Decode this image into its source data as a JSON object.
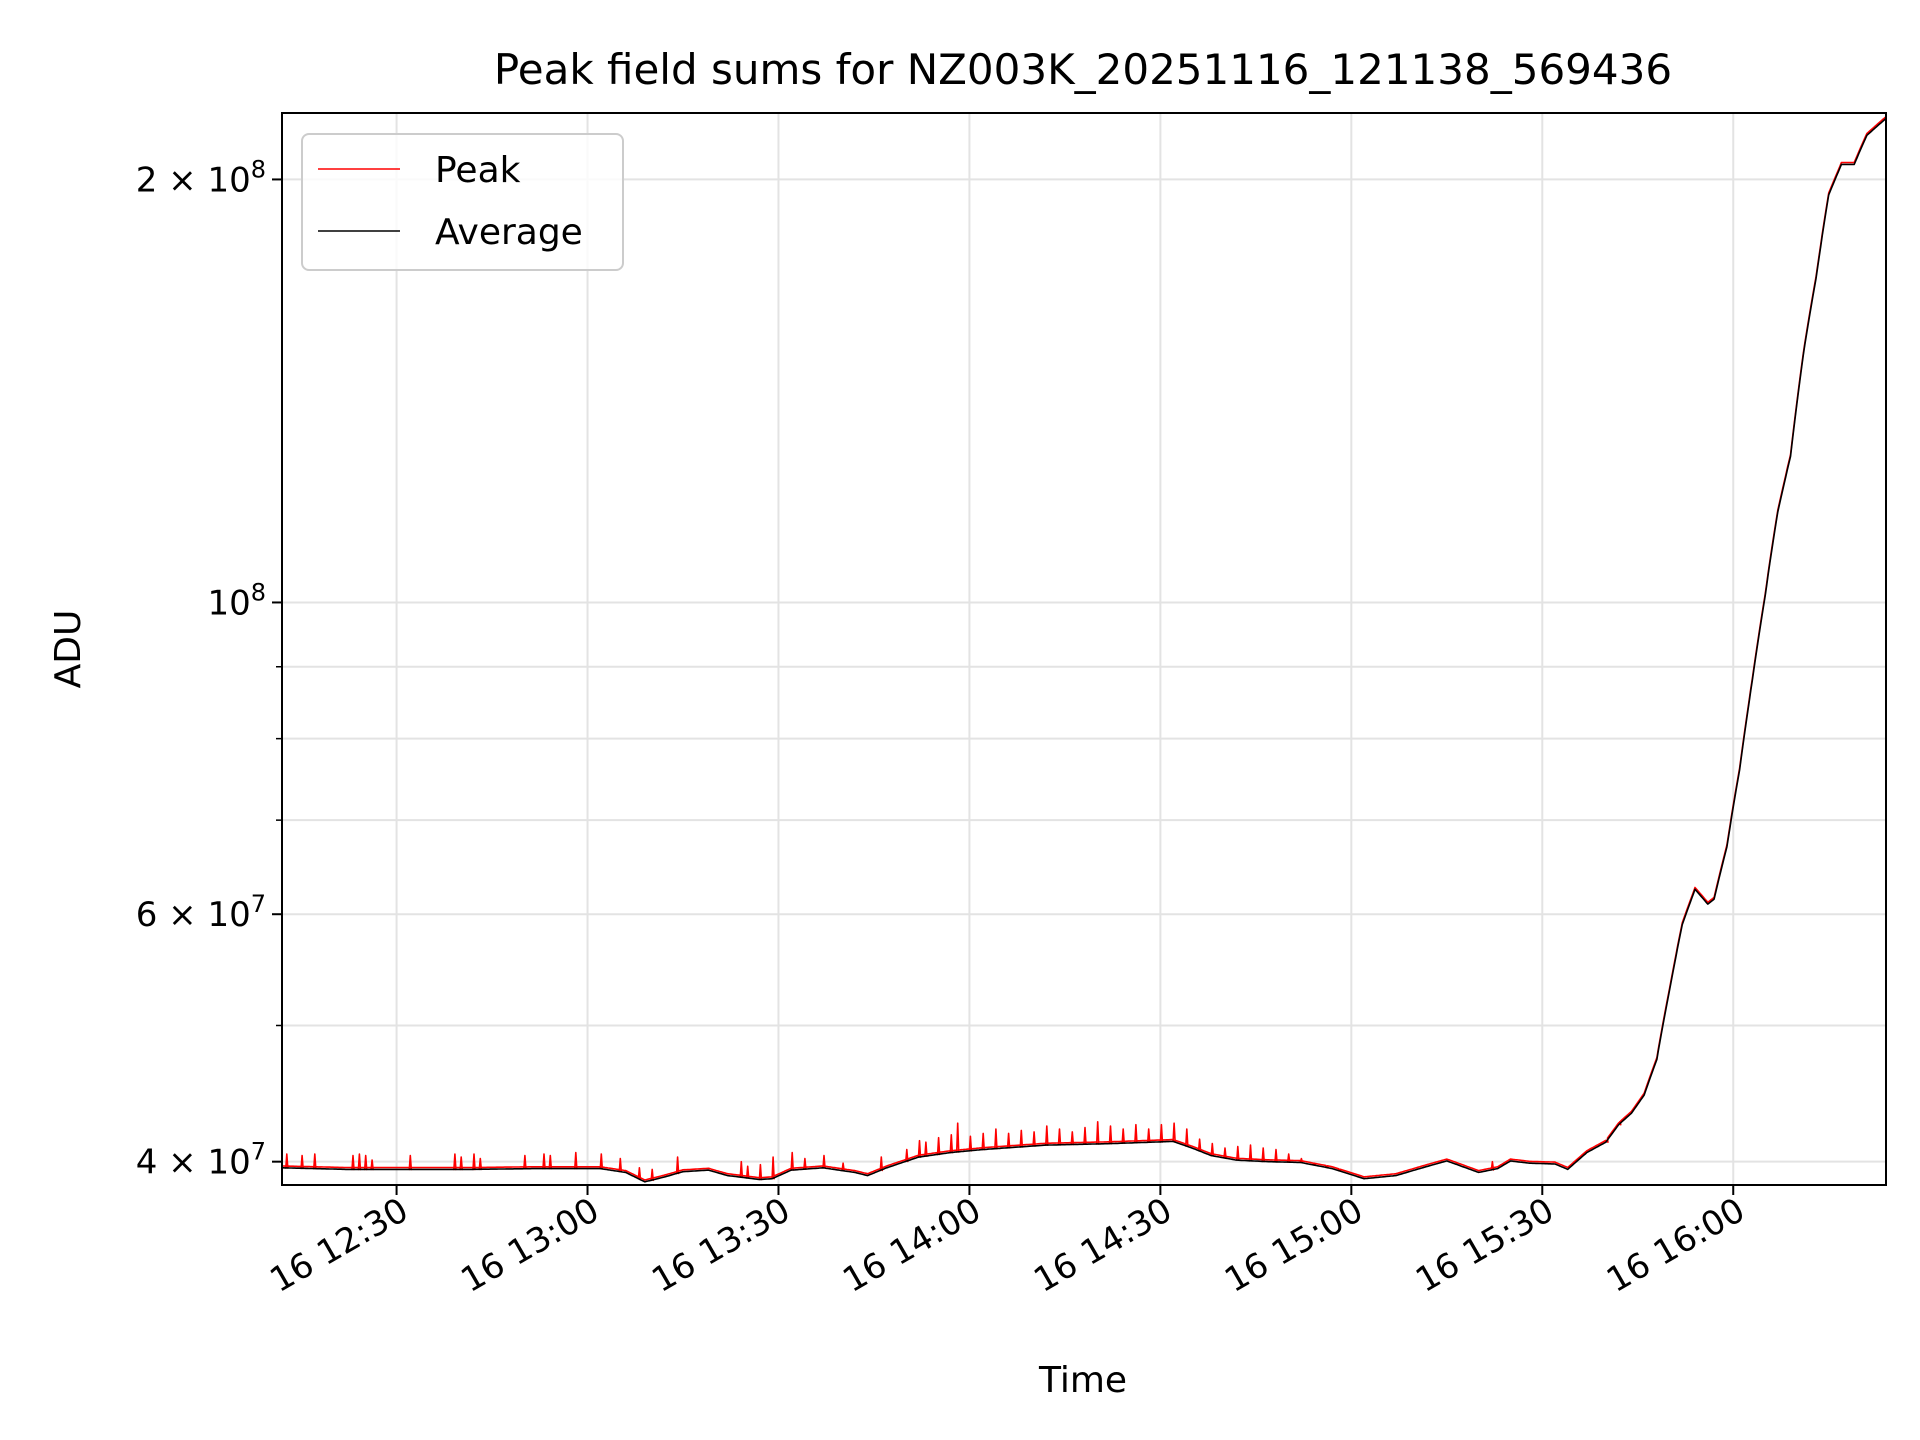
{
  "chart_data": {
    "type": "line",
    "title": "Peak field sums for NZ003K_20251116_121138_569436",
    "xlabel": "Time",
    "ylabel": "ADU",
    "yscale": "log",
    "grid": true,
    "legend_position": "top-left",
    "xlim_minutes": [
      0,
      252
    ],
    "ylim": [
      38500000,
      223000000
    ],
    "x_tick_minutes": [
      18,
      48,
      78,
      108,
      138,
      168,
      198,
      228
    ],
    "x_ticks": [
      "16 12:30",
      "16 13:00",
      "16 13:30",
      "16 14:00",
      "16 14:30",
      "16 15:00",
      "16 15:30",
      "16 16:00"
    ],
    "y_ticks": [
      {
        "value": 40000000,
        "base": "4 × 10",
        "exp": "7"
      },
      {
        "value": 60000000,
        "base": "6 × 10",
        "exp": "7"
      },
      {
        "value": 100000000,
        "base": "10",
        "exp": "8"
      },
      {
        "value": 200000000,
        "base": "2 × 10",
        "exp": "8"
      }
    ],
    "y_minor_ticks": [
      50000000,
      70000000,
      80000000,
      90000000
    ],
    "series": [
      {
        "name": "Peak",
        "color": "#ff0000"
      },
      {
        "name": "Average",
        "color": "#000000"
      }
    ],
    "average_points": [
      [
        0,
        39.6
      ],
      [
        10,
        39.5
      ],
      [
        20,
        39.5
      ],
      [
        30,
        39.5
      ],
      [
        40,
        39.55
      ],
      [
        50,
        39.55
      ],
      [
        54,
        39.3
      ],
      [
        57,
        38.7
      ],
      [
        60,
        39.0
      ],
      [
        63,
        39.35
      ],
      [
        67,
        39.45
      ],
      [
        70,
        39.1
      ],
      [
        75,
        38.85
      ],
      [
        77,
        38.9
      ],
      [
        80,
        39.45
      ],
      [
        85,
        39.6
      ],
      [
        90,
        39.3
      ],
      [
        92,
        39.1
      ],
      [
        95,
        39.6
      ],
      [
        100,
        40.3
      ],
      [
        105,
        40.6
      ],
      [
        110,
        40.8
      ],
      [
        120,
        41.1
      ],
      [
        130,
        41.2
      ],
      [
        140,
        41.35
      ],
      [
        143,
        40.9
      ],
      [
        146,
        40.4
      ],
      [
        150,
        40.1
      ],
      [
        155,
        40.0
      ],
      [
        160,
        39.95
      ],
      [
        165,
        39.55
      ],
      [
        170,
        38.9
      ],
      [
        175,
        39.1
      ],
      [
        180,
        39.7
      ],
      [
        183,
        40.05
      ],
      [
        185,
        39.75
      ],
      [
        188,
        39.3
      ],
      [
        191,
        39.55
      ],
      [
        193,
        40.05
      ],
      [
        196,
        39.9
      ],
      [
        200,
        39.85
      ],
      [
        202,
        39.5
      ],
      [
        205,
        40.6
      ],
      [
        208,
        41.3
      ],
      [
        210,
        42.5
      ],
      [
        212,
        43.3
      ],
      [
        214,
        44.6
      ],
      [
        216,
        47.3
      ],
      [
        218,
        53.0
      ],
      [
        220,
        59.0
      ],
      [
        222,
        62.5
      ],
      [
        224,
        61.0
      ],
      [
        225,
        61.5
      ],
      [
        227,
        67.0
      ],
      [
        229,
        76.0
      ],
      [
        231,
        88.0
      ],
      [
        233,
        101.0
      ],
      [
        235,
        116.0
      ],
      [
        237,
        127.0
      ],
      [
        239,
        150.0
      ],
      [
        241,
        170.0
      ],
      [
        243,
        195.0
      ],
      [
        245,
        205.0
      ],
      [
        247,
        205.0
      ],
      [
        249,
        215.0
      ],
      [
        252,
        221.0
      ]
    ],
    "peak_spikes": [
      [
        0.6,
        40.5
      ],
      [
        3,
        40.4
      ],
      [
        5,
        40.5
      ],
      [
        11,
        40.4
      ],
      [
        12,
        40.5
      ],
      [
        13,
        40.4
      ],
      [
        14,
        40.1
      ],
      [
        20,
        40.4
      ],
      [
        27,
        40.5
      ],
      [
        28,
        40.3
      ],
      [
        30,
        40.5
      ],
      [
        31,
        40.2
      ],
      [
        38,
        40.4
      ],
      [
        41,
        40.5
      ],
      [
        42,
        40.4
      ],
      [
        46,
        40.6
      ],
      [
        50,
        40.5
      ],
      [
        53,
        40.2
      ],
      [
        56,
        39.6
      ],
      [
        58,
        39.5
      ],
      [
        62,
        40.3
      ],
      [
        72,
        40.0
      ],
      [
        73,
        39.7
      ],
      [
        75,
        39.8
      ],
      [
        77,
        40.3
      ],
      [
        80,
        40.6
      ],
      [
        82,
        40.2
      ],
      [
        85,
        40.4
      ],
      [
        88,
        39.9
      ],
      [
        94,
        40.3
      ],
      [
        98,
        40.8
      ],
      [
        100,
        41.4
      ],
      [
        101,
        41.3
      ],
      [
        103,
        41.6
      ],
      [
        105,
        41.8
      ],
      [
        106,
        42.6
      ],
      [
        108,
        41.7
      ],
      [
        110,
        41.9
      ],
      [
        112,
        42.2
      ],
      [
        114,
        41.9
      ],
      [
        116,
        42.1
      ],
      [
        118,
        42.0
      ],
      [
        120,
        42.4
      ],
      [
        122,
        42.2
      ],
      [
        124,
        42.0
      ],
      [
        126,
        42.3
      ],
      [
        128,
        42.7
      ],
      [
        130,
        42.4
      ],
      [
        132,
        42.2
      ],
      [
        134,
        42.5
      ],
      [
        136,
        42.2
      ],
      [
        138,
        42.5
      ],
      [
        140,
        42.6
      ],
      [
        142,
        42.2
      ],
      [
        144,
        41.5
      ],
      [
        146,
        41.2
      ],
      [
        148,
        40.9
      ],
      [
        150,
        41.0
      ],
      [
        152,
        41.1
      ],
      [
        154,
        40.9
      ],
      [
        156,
        40.8
      ],
      [
        158,
        40.5
      ],
      [
        160,
        40.2
      ],
      [
        162,
        39.9
      ],
      [
        164,
        39.7
      ],
      [
        166,
        39.5
      ],
      [
        190,
        40.0
      ],
      [
        208,
        41.4
      ],
      [
        210,
        42.7
      ]
    ],
    "spike_color": "#ff0000"
  }
}
